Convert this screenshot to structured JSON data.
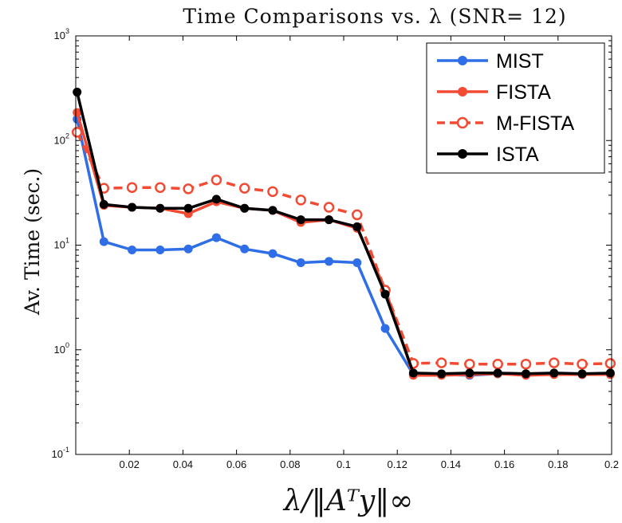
{
  "chart_data": {
    "type": "line",
    "title": "Time Comparisons vs. λ (SNR= 12)",
    "xlabel": "λ/‖Aᵀy‖∞",
    "ylabel": "Av. Time (sec.)",
    "yscale": "log",
    "xlim": [
      0.0,
      0.2
    ],
    "ylim": [
      0.1,
      1000
    ],
    "xticks": [
      "0.02",
      "0.04",
      "0.06",
      "0.08",
      "0.1",
      "0.12",
      "0.14",
      "0.16",
      "0.18",
      "0.2"
    ],
    "ytick_exponents": [
      "-1",
      "0",
      "1",
      "2",
      "3"
    ],
    "legend_position": "top-right",
    "x": [
      0.0005,
      0.0105,
      0.021,
      0.0315,
      0.042,
      0.0525,
      0.063,
      0.0735,
      0.084,
      0.0945,
      0.105,
      0.1155,
      0.126,
      0.1365,
      0.147,
      0.1575,
      0.168,
      0.1785,
      0.189,
      0.1995
    ],
    "series": [
      {
        "name": "MIST",
        "color": "#2f6ee6",
        "dashed": false,
        "values": [
          160,
          10.8,
          9.0,
          9.0,
          9.2,
          11.8,
          9.2,
          8.3,
          6.8,
          7.0,
          6.8,
          1.6,
          0.58,
          0.58,
          0.57,
          0.59,
          0.58,
          0.59,
          0.58,
          0.59
        ]
      },
      {
        "name": "FISTA",
        "color": "#f24a33",
        "dashed": false,
        "values": [
          185,
          24,
          23,
          22.5,
          20,
          26,
          22.5,
          21.5,
          16.5,
          17.5,
          14.5,
          3.8,
          0.57,
          0.57,
          0.58,
          0.59,
          0.57,
          0.58,
          0.58,
          0.58
        ]
      },
      {
        "name": "M-FISTA",
        "color": "#f24a33",
        "dashed": true,
        "values": [
          120,
          35,
          35.5,
          35.5,
          34.5,
          42,
          35,
          32.5,
          27,
          23,
          19.5,
          3.7,
          0.74,
          0.75,
          0.73,
          0.73,
          0.73,
          0.75,
          0.73,
          0.74
        ]
      },
      {
        "name": "ISTA",
        "color": "#000000",
        "dashed": false,
        "values": [
          290,
          24.5,
          23,
          22.5,
          22.5,
          27.5,
          22.5,
          21.5,
          17.5,
          17.5,
          15,
          3.4,
          0.6,
          0.59,
          0.6,
          0.6,
          0.59,
          0.6,
          0.59,
          0.6
        ]
      }
    ]
  }
}
